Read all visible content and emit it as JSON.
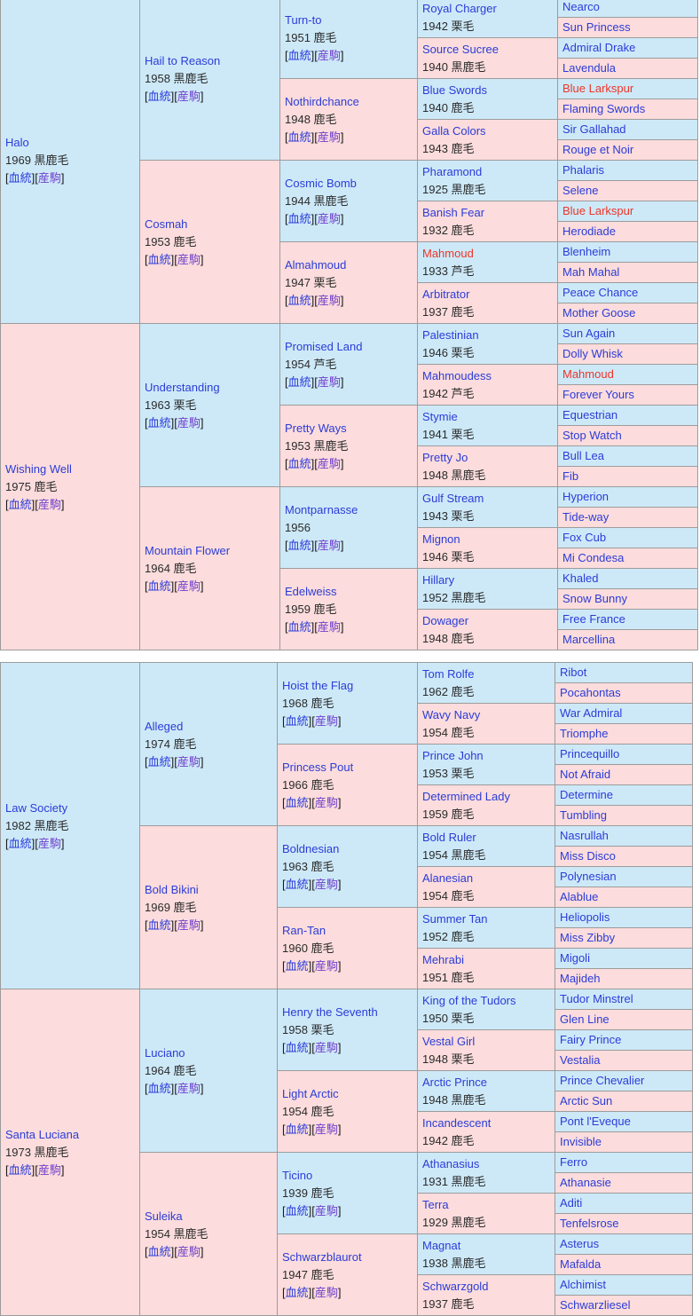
{
  "page": {
    "description": "horse pedigree tables (5 generations), Japanese bloodline chart",
    "palette": {
      "male_cell_bg": "#cde9f8",
      "female_cell_bg": "#fcdcdc",
      "cell_border": "#9c9c9c",
      "link_blue": "#2b3cd8",
      "link_visited_purple": "#7140cb",
      "inbreed_red": "#ee3528",
      "info_text": "#2b2b2b",
      "page_bg": "#ffffff"
    }
  },
  "labels": {
    "blood": "血統",
    "offspring": "産駒",
    "lb": "[",
    "rb": "]"
  },
  "tables": [
    {
      "name": "top-pedigree",
      "g1": [
        {
          "n": "Halo",
          "i": "1969 黒鹿毛",
          "s": "m"
        },
        {
          "n": "Wishing Well",
          "i": "1975 鹿毛",
          "s": "f"
        }
      ],
      "g2": [
        {
          "n": "Hail to Reason",
          "i": "1958 黒鹿毛",
          "s": "m"
        },
        {
          "n": "Cosmah",
          "i": "1953 鹿毛",
          "s": "f"
        },
        {
          "n": "Understanding",
          "i": "1963 栗毛",
          "s": "m"
        },
        {
          "n": "Mountain Flower",
          "i": "1964 鹿毛",
          "s": "f"
        }
      ],
      "g3": [
        {
          "n": "Turn-to",
          "i": "1951 鹿毛",
          "s": "m"
        },
        {
          "n": "Nothirdchance",
          "i": "1948 鹿毛",
          "s": "f"
        },
        {
          "n": "Cosmic Bomb",
          "i": "1944 黒鹿毛",
          "s": "m"
        },
        {
          "n": "Almahmoud",
          "i": "1947 栗毛",
          "s": "f"
        },
        {
          "n": "Promised Land",
          "i": "1954 芦毛",
          "s": "m"
        },
        {
          "n": "Pretty Ways",
          "i": "1953 黒鹿毛",
          "s": "f"
        },
        {
          "n": "Montparnasse",
          "i": "1956",
          "s": "m"
        },
        {
          "n": "Edelweiss",
          "i": "1959 鹿毛",
          "s": "f"
        }
      ],
      "g4": [
        {
          "n": "Royal Charger",
          "i": "1942 栗毛",
          "s": "m"
        },
        {
          "n": "Source Sucree",
          "i": "1940 黒鹿毛",
          "s": "f"
        },
        {
          "n": "Blue Swords",
          "i": "1940 鹿毛",
          "s": "m"
        },
        {
          "n": "Galla Colors",
          "i": "1943 鹿毛",
          "s": "f"
        },
        {
          "n": "Pharamond",
          "i": "1925 黒鹿毛",
          "s": "m"
        },
        {
          "n": "Banish Fear",
          "i": "1932 鹿毛",
          "s": "f"
        },
        {
          "n": "Mahmoud",
          "i": "1933 芦毛",
          "s": "m",
          "r": true
        },
        {
          "n": "Arbitrator",
          "i": "1937 鹿毛",
          "s": "f"
        },
        {
          "n": "Palestinian",
          "i": "1946 栗毛",
          "s": "m"
        },
        {
          "n": "Mahmoudess",
          "i": "1942 芦毛",
          "s": "f"
        },
        {
          "n": "Stymie",
          "i": "1941 栗毛",
          "s": "m"
        },
        {
          "n": "Pretty Jo",
          "i": "1948 黒鹿毛",
          "s": "f"
        },
        {
          "n": "Gulf Stream",
          "i": "1943 栗毛",
          "s": "m"
        },
        {
          "n": "Mignon",
          "i": "1946 栗毛",
          "s": "f"
        },
        {
          "n": "Hillary",
          "i": "1952 黒鹿毛",
          "s": "m"
        },
        {
          "n": "Dowager",
          "i": "1948 鹿毛",
          "s": "f"
        }
      ],
      "g5": [
        {
          "n": "Nearco",
          "s": "m"
        },
        {
          "n": "Sun Princess",
          "s": "f"
        },
        {
          "n": "Admiral Drake",
          "s": "m"
        },
        {
          "n": "Lavendula",
          "s": "f"
        },
        {
          "n": "Blue Larkspur",
          "s": "m",
          "r": true
        },
        {
          "n": "Flaming Swords",
          "s": "f"
        },
        {
          "n": "Sir Gallahad",
          "s": "m"
        },
        {
          "n": "Rouge et Noir",
          "s": "f"
        },
        {
          "n": "Phalaris",
          "s": "m"
        },
        {
          "n": "Selene",
          "s": "f"
        },
        {
          "n": "Blue Larkspur",
          "s": "m",
          "r": true
        },
        {
          "n": "Herodiade",
          "s": "f"
        },
        {
          "n": "Blenheim",
          "s": "m"
        },
        {
          "n": "Mah Mahal",
          "s": "f"
        },
        {
          "n": "Peace Chance",
          "s": "m"
        },
        {
          "n": "Mother Goose",
          "s": "f"
        },
        {
          "n": "Sun Again",
          "s": "m"
        },
        {
          "n": "Dolly Whisk",
          "s": "f"
        },
        {
          "n": "Mahmoud",
          "s": "m",
          "r": true
        },
        {
          "n": "Forever Yours",
          "s": "f"
        },
        {
          "n": "Equestrian",
          "s": "m"
        },
        {
          "n": "Stop Watch",
          "s": "f"
        },
        {
          "n": "Bull Lea",
          "s": "m"
        },
        {
          "n": "Fib",
          "s": "f"
        },
        {
          "n": "Hyperion",
          "s": "m"
        },
        {
          "n": "Tide-way",
          "s": "f"
        },
        {
          "n": "Fox Cub",
          "s": "m"
        },
        {
          "n": "Mi Condesa",
          "s": "f"
        },
        {
          "n": "Khaled",
          "s": "m"
        },
        {
          "n": "Snow Bunny",
          "s": "f"
        },
        {
          "n": "Free France",
          "s": "m"
        },
        {
          "n": "Marcellina",
          "s": "f"
        }
      ]
    },
    {
      "name": "bottom-pedigree",
      "g1": [
        {
          "n": "Law Society",
          "i": "1982 黒鹿毛",
          "s": "m"
        },
        {
          "n": "Santa Luciana",
          "i": "1973 黒鹿毛",
          "s": "f"
        }
      ],
      "g2": [
        {
          "n": "Alleged",
          "i": "1974 鹿毛",
          "s": "m"
        },
        {
          "n": "Bold Bikini",
          "i": "1969 鹿毛",
          "s": "f"
        },
        {
          "n": "Luciano",
          "i": "1964 鹿毛",
          "s": "m"
        },
        {
          "n": "Suleika",
          "i": "1954 黒鹿毛",
          "s": "f"
        }
      ],
      "g3": [
        {
          "n": "Hoist the Flag",
          "i": "1968 鹿毛",
          "s": "m"
        },
        {
          "n": "Princess Pout",
          "i": "1966 鹿毛",
          "s": "f"
        },
        {
          "n": "Boldnesian",
          "i": "1963 鹿毛",
          "s": "m"
        },
        {
          "n": "Ran-Tan",
          "i": "1960 鹿毛",
          "s": "f"
        },
        {
          "n": "Henry the Seventh",
          "i": "1958 栗毛",
          "s": "m"
        },
        {
          "n": "Light Arctic",
          "i": "1954 鹿毛",
          "s": "f"
        },
        {
          "n": "Ticino",
          "i": "1939 鹿毛",
          "s": "m"
        },
        {
          "n": "Schwarzblaurot",
          "i": "1947 鹿毛",
          "s": "f"
        }
      ],
      "g4": [
        {
          "n": "Tom Rolfe",
          "i": "1962 鹿毛",
          "s": "m"
        },
        {
          "n": "Wavy Navy",
          "i": "1954 鹿毛",
          "s": "f"
        },
        {
          "n": "Prince John",
          "i": "1953 栗毛",
          "s": "m"
        },
        {
          "n": "Determined Lady",
          "i": "1959 鹿毛",
          "s": "f"
        },
        {
          "n": "Bold Ruler",
          "i": "1954 黒鹿毛",
          "s": "m"
        },
        {
          "n": "Alanesian",
          "i": "1954 鹿毛",
          "s": "f"
        },
        {
          "n": "Summer Tan",
          "i": "1952 鹿毛",
          "s": "m"
        },
        {
          "n": "Mehrabi",
          "i": "1951 鹿毛",
          "s": "f"
        },
        {
          "n": "King of the Tudors",
          "i": "1950 栗毛",
          "s": "m"
        },
        {
          "n": "Vestal Girl",
          "i": "1948 栗毛",
          "s": "f"
        },
        {
          "n": "Arctic Prince",
          "i": "1948 黒鹿毛",
          "s": "m"
        },
        {
          "n": "Incandescent",
          "i": "1942 鹿毛",
          "s": "f"
        },
        {
          "n": "Athanasius",
          "i": "1931 黒鹿毛",
          "s": "m"
        },
        {
          "n": "Terra",
          "i": "1929 黒鹿毛",
          "s": "f"
        },
        {
          "n": "Magnat",
          "i": "1938 黒鹿毛",
          "s": "m"
        },
        {
          "n": "Schwarzgold",
          "i": "1937 鹿毛",
          "s": "f"
        }
      ],
      "g5": [
        {
          "n": "Ribot",
          "s": "m"
        },
        {
          "n": "Pocahontas",
          "s": "f"
        },
        {
          "n": "War Admiral",
          "s": "m"
        },
        {
          "n": "Triomphe",
          "s": "f"
        },
        {
          "n": "Princequillo",
          "s": "m"
        },
        {
          "n": "Not Afraid",
          "s": "f"
        },
        {
          "n": "Determine",
          "s": "m"
        },
        {
          "n": "Tumbling",
          "s": "f"
        },
        {
          "n": "Nasrullah",
          "s": "m"
        },
        {
          "n": "Miss Disco",
          "s": "f"
        },
        {
          "n": "Polynesian",
          "s": "m"
        },
        {
          "n": "Alablue",
          "s": "f"
        },
        {
          "n": "Heliopolis",
          "s": "m"
        },
        {
          "n": "Miss Zibby",
          "s": "f"
        },
        {
          "n": "Migoli",
          "s": "m"
        },
        {
          "n": "Majideh",
          "s": "f"
        },
        {
          "n": "Tudor Minstrel",
          "s": "m"
        },
        {
          "n": "Glen Line",
          "s": "f"
        },
        {
          "n": "Fairy Prince",
          "s": "m"
        },
        {
          "n": "Vestalia",
          "s": "f"
        },
        {
          "n": "Prince Chevalier",
          "s": "m"
        },
        {
          "n": "Arctic Sun",
          "s": "f"
        },
        {
          "n": "Pont l'Eveque",
          "s": "m"
        },
        {
          "n": "Invisible",
          "s": "f"
        },
        {
          "n": "Ferro",
          "s": "m"
        },
        {
          "n": "Athanasie",
          "s": "f"
        },
        {
          "n": "Aditi",
          "s": "m"
        },
        {
          "n": "Tenfelsrose",
          "s": "f"
        },
        {
          "n": "Asterus",
          "s": "m"
        },
        {
          "n": "Mafalda",
          "s": "f"
        },
        {
          "n": "Alchimist",
          "s": "m"
        },
        {
          "n": "Schwarzliesel",
          "s": "f"
        }
      ]
    }
  ]
}
